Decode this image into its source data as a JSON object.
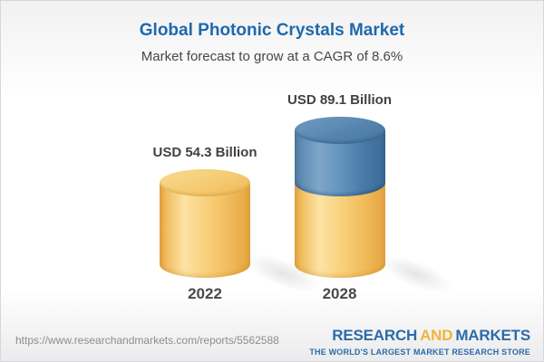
{
  "header": {
    "title": "Global Photonic Crystals Market",
    "subtitle": "Market forecast to grow at a CAGR of 8.6%"
  },
  "chart_data": {
    "type": "bar",
    "subtype": "3d-cylinder",
    "title": "Global Photonic Crystals Market",
    "subtitle": "Market forecast to grow at a CAGR of 8.6%",
    "cagr_percent": 8.6,
    "unit": "USD Billion",
    "categories": [
      "2022",
      "2028"
    ],
    "values": [
      54.3,
      89.1
    ],
    "grid": false,
    "legend": "none",
    "axes_visible": false,
    "ylim": [
      0,
      100
    ],
    "bars": [
      {
        "category": "2022",
        "label": "USD 54.3 Billion",
        "total": 54.3,
        "segments": [
          {
            "name": "base",
            "value": 54.3,
            "color": "gold"
          }
        ]
      },
      {
        "category": "2028",
        "label": "USD 89.1 Billion",
        "total": 89.1,
        "segments": [
          {
            "name": "base",
            "value": 54.3,
            "color": "gold"
          },
          {
            "name": "growth",
            "value": 34.8,
            "color": "blue"
          }
        ]
      }
    ],
    "colors": {
      "gold": "#f5c664",
      "blue": "#4c7caa"
    }
  },
  "footer": {
    "url": "https://www.researchandmarkets.com/reports/5562588",
    "logo": {
      "research": "RESEARCH",
      "and": "AND",
      "markets": "MARKETS",
      "tagline": "THE WORLD'S LARGEST MARKET RESEARCH STORE"
    }
  },
  "colors": {
    "title_blue": "#1e68ad",
    "text_dark": "#3f4245",
    "url_gray": "#8d8d90",
    "logo_blue": "#2b6ba8",
    "logo_gold": "#f3b33a"
  }
}
